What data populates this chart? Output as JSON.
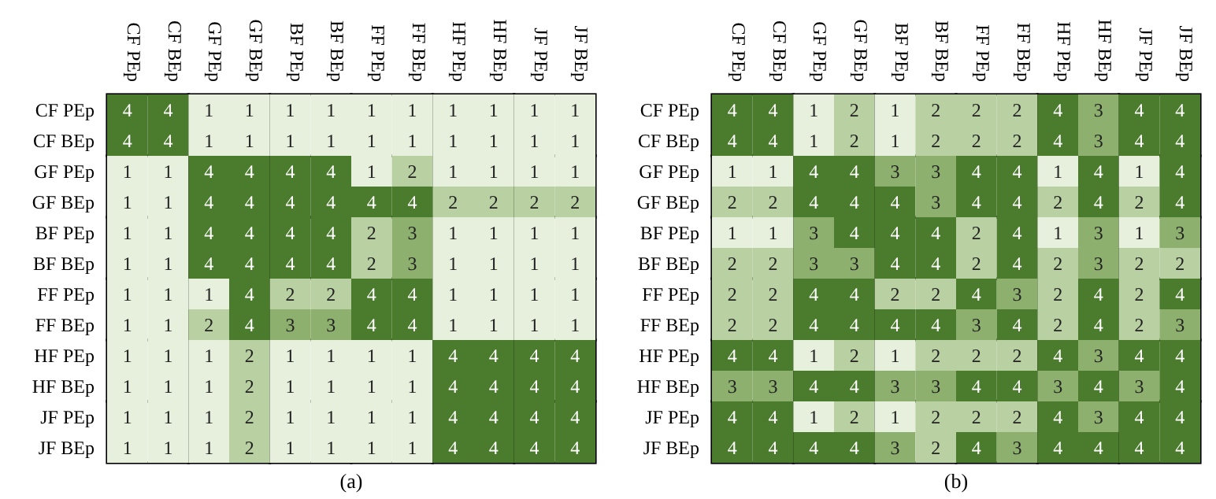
{
  "chart_data": [
    {
      "type": "heatmap",
      "title": "(a)",
      "data_labels": true,
      "categories": [
        "CF PEp",
        "CF BEp",
        "GF PEp",
        "GF BEp",
        "BF PEp",
        "BF BEp",
        "FF PEp",
        "FF BEp",
        "HF PEp",
        "HF BEp",
        "JF PEp",
        "JF BEp"
      ],
      "y_categories": [
        "CF PEp",
        "CF BEp",
        "GF PEp",
        "GF BEp",
        "BF PEp",
        "BF BEp",
        "FF PEp",
        "FF BEp",
        "HF PEp",
        "HF BEp",
        "JF PEp",
        "JF BEp"
      ],
      "cells": [
        [
          4,
          4,
          1,
          1,
          1,
          1,
          1,
          1,
          1,
          1,
          1,
          1
        ],
        [
          4,
          4,
          1,
          1,
          1,
          1,
          1,
          1,
          1,
          1,
          1,
          1
        ],
        [
          1,
          1,
          4,
          4,
          4,
          4,
          1,
          2,
          1,
          1,
          1,
          1
        ],
        [
          1,
          1,
          4,
          4,
          4,
          4,
          4,
          4,
          2,
          2,
          2,
          2
        ],
        [
          1,
          1,
          4,
          4,
          4,
          4,
          2,
          3,
          1,
          1,
          1,
          1
        ],
        [
          1,
          1,
          4,
          4,
          4,
          4,
          2,
          3,
          1,
          1,
          1,
          1
        ],
        [
          1,
          1,
          1,
          4,
          2,
          2,
          4,
          4,
          1,
          1,
          1,
          1
        ],
        [
          1,
          1,
          2,
          4,
          3,
          3,
          4,
          4,
          1,
          1,
          1,
          1
        ],
        [
          1,
          1,
          1,
          2,
          1,
          1,
          1,
          1,
          4,
          4,
          4,
          4
        ],
        [
          1,
          1,
          1,
          2,
          1,
          1,
          1,
          1,
          4,
          4,
          4,
          4
        ],
        [
          1,
          1,
          1,
          2,
          1,
          1,
          1,
          1,
          4,
          4,
          4,
          4
        ],
        [
          1,
          1,
          1,
          2,
          1,
          1,
          1,
          1,
          4,
          4,
          4,
          4
        ]
      ]
    },
    {
      "type": "heatmap",
      "title": "(b)",
      "data_labels": true,
      "categories": [
        "CF PEp",
        "CF BEp",
        "GF PEp",
        "GF BEp",
        "BF PEp",
        "BF BEp",
        "FF PEp",
        "FF BEp",
        "HF PEp",
        "HF BEp",
        "JF PEp",
        "JF BEp"
      ],
      "y_categories": [
        "CF PEp",
        "CF BEp",
        "GF PEp",
        "GF BEp",
        "BF PEp",
        "BF BEp",
        "FF PEp",
        "FF BEp",
        "HF PEp",
        "HF BEp",
        "JF PEp",
        "JF BEp"
      ],
      "cells": [
        [
          4,
          4,
          1,
          2,
          1,
          2,
          2,
          2,
          4,
          3,
          4,
          4
        ],
        [
          4,
          4,
          1,
          2,
          1,
          2,
          2,
          2,
          4,
          3,
          4,
          4
        ],
        [
          1,
          1,
          4,
          4,
          3,
          3,
          4,
          4,
          1,
          4,
          1,
          4
        ],
        [
          2,
          2,
          4,
          4,
          4,
          3,
          4,
          4,
          2,
          4,
          2,
          4
        ],
        [
          1,
          1,
          3,
          4,
          4,
          4,
          2,
          4,
          1,
          3,
          1,
          3
        ],
        [
          2,
          2,
          3,
          3,
          4,
          4,
          2,
          4,
          2,
          3,
          2,
          2
        ],
        [
          2,
          2,
          4,
          4,
          2,
          2,
          4,
          3,
          2,
          4,
          2,
          4
        ],
        [
          2,
          2,
          4,
          4,
          4,
          4,
          3,
          4,
          2,
          4,
          2,
          3
        ],
        [
          4,
          4,
          1,
          2,
          1,
          2,
          2,
          2,
          4,
          3,
          4,
          4
        ],
        [
          3,
          3,
          4,
          4,
          3,
          3,
          4,
          4,
          3,
          4,
          3,
          4
        ],
        [
          4,
          4,
          1,
          2,
          1,
          2,
          2,
          2,
          4,
          3,
          4,
          4
        ],
        [
          4,
          4,
          4,
          4,
          3,
          2,
          4,
          3,
          4,
          4,
          4,
          4
        ]
      ]
    }
  ]
}
